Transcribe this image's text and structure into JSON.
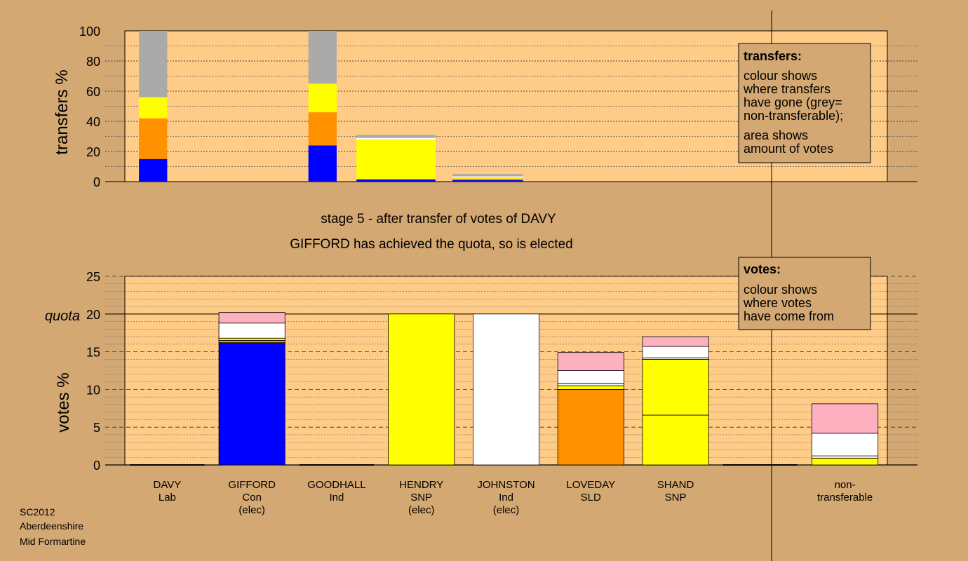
{
  "chart_data": [
    {
      "type": "bar",
      "stacked": true,
      "ylabel": "transfers %",
      "ylim": [
        0,
        100
      ],
      "yticks": [
        0,
        20,
        40,
        60,
        80,
        100
      ],
      "grid": true,
      "bars": [
        {
          "x": [
            0.5,
            1.5
          ],
          "segments": [
            {
              "color": "#0000ff",
              "from": 0,
              "to": 15
            },
            {
              "color": "#ff9000",
              "from": 15,
              "to": 42
            },
            {
              "color": "#ffff00",
              "from": 42,
              "to": 56
            },
            {
              "color": "#aaaaaa",
              "from": 56,
              "to": 100
            }
          ]
        },
        {
          "x": [
            6.5,
            7.5
          ],
          "segments": [
            {
              "color": "#0000ff",
              "from": 0,
              "to": 24
            },
            {
              "color": "#ff9000",
              "from": 24,
              "to": 46
            },
            {
              "color": "#ffff00",
              "from": 46,
              "to": 65
            },
            {
              "color": "#aaaaaa",
              "from": 65,
              "to": 100
            }
          ]
        },
        {
          "x": [
            8.2,
            11.0
          ],
          "segments": [
            {
              "color": "#0000ff",
              "from": 0,
              "to": 1.5
            },
            {
              "color": "#ffff00",
              "from": 1.5,
              "to": 3
            },
            {
              "color": "#ffff00",
              "from": 3,
              "to": 28
            },
            {
              "color": "#ffffff",
              "from": 28,
              "to": 29
            },
            {
              "color": "#aaaaaa",
              "from": 29,
              "to": 31
            }
          ]
        },
        {
          "x": [
            11.6,
            14.1
          ],
          "segments": [
            {
              "color": "#0000ff",
              "from": 0,
              "to": 1
            },
            {
              "color": "#ff9000",
              "from": 1,
              "to": 2
            },
            {
              "color": "#ffff00",
              "from": 2,
              "to": 3
            },
            {
              "color": "#ffffff",
              "from": 3,
              "to": 3.5
            },
            {
              "color": "#aaaaaa",
              "from": 3.5,
              "to": 5
            }
          ]
        }
      ]
    },
    {
      "type": "bar",
      "stacked": true,
      "ylabel": "votes %",
      "ylim": [
        0,
        25
      ],
      "yticks": [
        0,
        5,
        10,
        15,
        20,
        25
      ],
      "quota": 20,
      "quota_label": "quota",
      "grid": true,
      "categories": [
        {
          "name": "DAVY",
          "party": "Lab",
          "status": ""
        },
        {
          "name": "GIFFORD",
          "party": "Con",
          "status": "(elec)"
        },
        {
          "name": "GOODHALL",
          "party": "Ind",
          "status": ""
        },
        {
          "name": "HENDRY",
          "party": "SNP",
          "status": "(elec)"
        },
        {
          "name": "JOHNSTON",
          "party": "Ind",
          "status": "(elec)"
        },
        {
          "name": "LOVEDAY",
          "party": "SLD",
          "status": ""
        },
        {
          "name": "SHAND",
          "party": "SNP",
          "status": ""
        },
        {
          "name": "",
          "party": "",
          "status": ""
        },
        {
          "name": "non-",
          "party": "transferable",
          "status": ""
        }
      ],
      "stacks": [
        [],
        [
          {
            "color": "#0000ff",
            "from": 0,
            "to": 16.2
          },
          {
            "color": "#ff9000",
            "from": 16.2,
            "to": 16.5
          },
          {
            "color": "#ffff00",
            "from": 16.5,
            "to": 16.8
          },
          {
            "color": "#ffffff",
            "from": 16.8,
            "to": 18.8
          },
          {
            "color": "#ffb0c0",
            "from": 18.8,
            "to": 20.2
          }
        ],
        [],
        [
          {
            "color": "#ffff00",
            "from": 0,
            "to": 20
          }
        ],
        [
          {
            "color": "#ffffff",
            "from": 0,
            "to": 20
          }
        ],
        [
          {
            "color": "#ff9000",
            "from": 0,
            "to": 10
          },
          {
            "color": "#ffff00",
            "from": 10,
            "to": 10.5
          },
          {
            "color": "#ffffff",
            "from": 10.5,
            "to": 10.8
          },
          {
            "color": "#ffffff",
            "from": 10.8,
            "to": 12.5
          },
          {
            "color": "#ffb0c0",
            "from": 12.5,
            "to": 14.9
          }
        ],
        [
          {
            "color": "#ffff00",
            "from": 0,
            "to": 6.6
          },
          {
            "color": "#ffff00",
            "from": 6.6,
            "to": 14
          },
          {
            "color": "#ffffff",
            "from": 14,
            "to": 14.2
          },
          {
            "color": "#ffffff",
            "from": 14.2,
            "to": 15.7
          },
          {
            "color": "#ffb0c0",
            "from": 15.7,
            "to": 17
          }
        ],
        [],
        [
          {
            "color": "#ffff00",
            "from": 0,
            "to": 0.9
          },
          {
            "color": "#ffffff",
            "from": 0.9,
            "to": 1.2
          },
          {
            "color": "#ffffff",
            "from": 1.2,
            "to": 4.2
          },
          {
            "color": "#ffb0c0",
            "from": 4.2,
            "to": 8.1
          }
        ]
      ]
    }
  ],
  "captions": {
    "line1": "stage 5 - after transfer of votes of DAVY",
    "line2": "GIFFORD has achieved the quota, so is elected"
  },
  "legend_transfers": {
    "title": "transfers:",
    "lines": [
      "colour shows",
      "where transfers",
      "have gone (grey=",
      "non-transferable);",
      "area shows",
      "amount of votes"
    ]
  },
  "legend_votes": {
    "title": "votes:",
    "lines": [
      "colour shows",
      "where votes",
      "have come from"
    ]
  },
  "footer": [
    "SC2012",
    "Aberdeenshire",
    "Mid Formartine"
  ],
  "colors": {
    "background": "#d4a872",
    "plot_area": "#ffcc88",
    "legend_box": "#d4a872"
  }
}
